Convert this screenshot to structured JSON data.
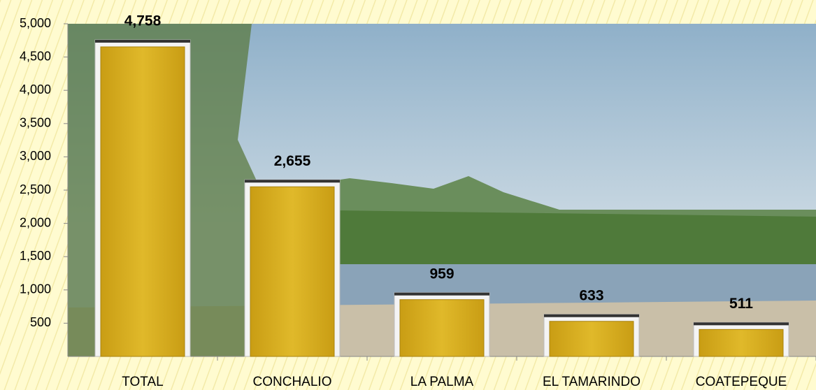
{
  "chart_data": {
    "type": "bar",
    "categories": [
      "TOTAL",
      "CONCHALIO",
      "LA PALMA",
      "EL TAMARINDO",
      "COATEPEQUE"
    ],
    "values": [
      4758,
      2655,
      959,
      633,
      511
    ],
    "value_labels": [
      "4,758",
      "2,655",
      "959",
      "633",
      "511"
    ],
    "color": "#d4ab1f",
    "ylim": [
      0,
      5000
    ],
    "yticks": [
      500,
      {
        "value": 1000,
        "label": "1,000"
      },
      {
        "value": 1500,
        "label": "1,500"
      },
      {
        "value": 2000,
        "label": "2,000"
      },
      {
        "value": 2500,
        "label": "2,500"
      },
      {
        "value": 3000,
        "label": "3,000"
      },
      {
        "value": 3500,
        "label": "3,500"
      },
      {
        "value": 4000,
        "label": "4,000"
      },
      {
        "value": 4500,
        "label": "4,500"
      },
      {
        "value": 5000,
        "label": "5,000"
      }
    ],
    "grid": false
  }
}
